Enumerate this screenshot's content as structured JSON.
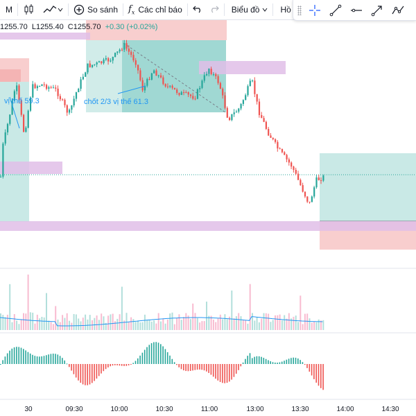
{
  "toolbar": {
    "interval": "M",
    "compare_label": "So sánh",
    "indicators_label": "Các chỉ báo",
    "layout_label": "Biểu đồ",
    "profile_label": "Hồ sơ"
  },
  "legend": {
    "high": "1255.70",
    "low": "L1255.40",
    "close": "C1255.70",
    "change": "+0.30 (+0.02%)"
  },
  "annotations": {
    "left_note": "vị thế 59.3",
    "mid_note": "chốt 2/3 vị thế 61.3"
  },
  "time_axis": {
    "labels": [
      "30",
      "09:30",
      "10:00",
      "10:30",
      "11:00",
      "13:00",
      "13:30",
      "14:00",
      "14:30"
    ]
  },
  "colors": {
    "up": "#26a69a",
    "down": "#ef5350",
    "volume_line": "#2196f3",
    "profit_zone": "#26a69a",
    "loss_zone": "#ef5350",
    "level_band": "#ce93d8"
  },
  "icons": {
    "add": "plus-circle-icon",
    "indicators": "fx-icon",
    "undo": "undo-icon",
    "redo": "redo-icon",
    "drawing_tools": [
      "crosshair-icon",
      "trend-line-icon",
      "horizontal-ray-icon",
      "arrow-icon",
      "path-icon"
    ]
  }
}
